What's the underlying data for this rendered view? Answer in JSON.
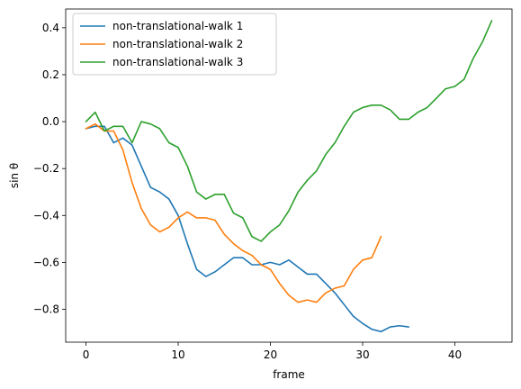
{
  "chart_data": {
    "type": "line",
    "title": "",
    "xlabel": "frame",
    "ylabel": "sin θ",
    "xlim": [
      -2.2,
      46.2
    ],
    "ylim": [
      -0.94,
      0.48
    ],
    "xticks": [
      0,
      10,
      20,
      30,
      40
    ],
    "yticks": [
      -0.8,
      -0.6,
      -0.4,
      -0.2,
      0.0,
      0.2,
      0.4
    ],
    "xtick_labels": [
      "0",
      "10",
      "20",
      "30",
      "40"
    ],
    "ytick_labels": [
      "−0.8",
      "−0.6",
      "−0.4",
      "−0.2",
      "0.0",
      "0.2",
      "0.4"
    ],
    "grid": false,
    "legend_position": "top-left",
    "series": [
      {
        "name": "non-translational-walk 1",
        "color": "#1f77b4",
        "x": [
          0,
          1,
          2,
          3,
          4,
          5,
          6,
          7,
          8,
          9,
          10,
          11,
          12,
          13,
          14,
          15,
          16,
          17,
          18,
          19,
          20,
          21,
          22,
          23,
          24,
          25,
          26,
          27,
          28,
          29,
          30,
          31,
          32,
          33,
          34,
          35
        ],
        "y": [
          -0.03,
          -0.02,
          -0.02,
          -0.09,
          -0.07,
          -0.1,
          -0.19,
          -0.28,
          -0.3,
          -0.33,
          -0.4,
          -0.52,
          -0.63,
          -0.66,
          -0.64,
          -0.61,
          -0.58,
          -0.58,
          -0.61,
          -0.61,
          -0.6,
          -0.61,
          -0.59,
          -0.62,
          -0.65,
          -0.65,
          -0.69,
          -0.73,
          -0.78,
          -0.83,
          -0.86,
          -0.885,
          -0.895,
          -0.875,
          -0.87,
          -0.875
        ]
      },
      {
        "name": "non-translational-walk 2",
        "color": "#ff7f0e",
        "x": [
          0,
          1,
          2,
          3,
          4,
          5,
          6,
          7,
          8,
          9,
          10,
          11,
          12,
          13,
          14,
          15,
          16,
          17,
          18,
          19,
          20,
          21,
          22,
          23,
          24,
          25,
          26,
          27,
          28,
          29,
          30,
          31,
          32
        ],
        "y": [
          -0.03,
          -0.01,
          -0.04,
          -0.04,
          -0.12,
          -0.26,
          -0.37,
          -0.44,
          -0.47,
          -0.45,
          -0.41,
          -0.385,
          -0.41,
          -0.41,
          -0.42,
          -0.48,
          -0.52,
          -0.55,
          -0.57,
          -0.61,
          -0.63,
          -0.69,
          -0.74,
          -0.77,
          -0.76,
          -0.77,
          -0.73,
          -0.71,
          -0.7,
          -0.63,
          -0.59,
          -0.58,
          -0.49
        ]
      },
      {
        "name": "non-translational-walk 3",
        "color": "#2ca02c",
        "x": [
          0,
          1,
          2,
          3,
          4,
          5,
          6,
          7,
          8,
          9,
          10,
          11,
          12,
          13,
          14,
          15,
          16,
          17,
          18,
          19,
          20,
          21,
          22,
          23,
          24,
          25,
          26,
          27,
          28,
          29,
          30,
          31,
          32,
          33,
          34,
          35,
          36,
          37,
          38,
          39,
          40,
          41,
          42,
          43,
          44
        ],
        "y": [
          0.0,
          0.04,
          -0.04,
          -0.02,
          -0.02,
          -0.09,
          0.0,
          -0.01,
          -0.03,
          -0.09,
          -0.11,
          -0.19,
          -0.3,
          -0.33,
          -0.31,
          -0.31,
          -0.39,
          -0.41,
          -0.49,
          -0.51,
          -0.47,
          -0.44,
          -0.38,
          -0.3,
          -0.25,
          -0.21,
          -0.14,
          -0.09,
          -0.02,
          0.04,
          0.06,
          0.07,
          0.07,
          0.05,
          0.01,
          0.01,
          0.04,
          0.06,
          0.1,
          0.14,
          0.15,
          0.18,
          0.27,
          0.34,
          0.43
        ]
      }
    ]
  }
}
